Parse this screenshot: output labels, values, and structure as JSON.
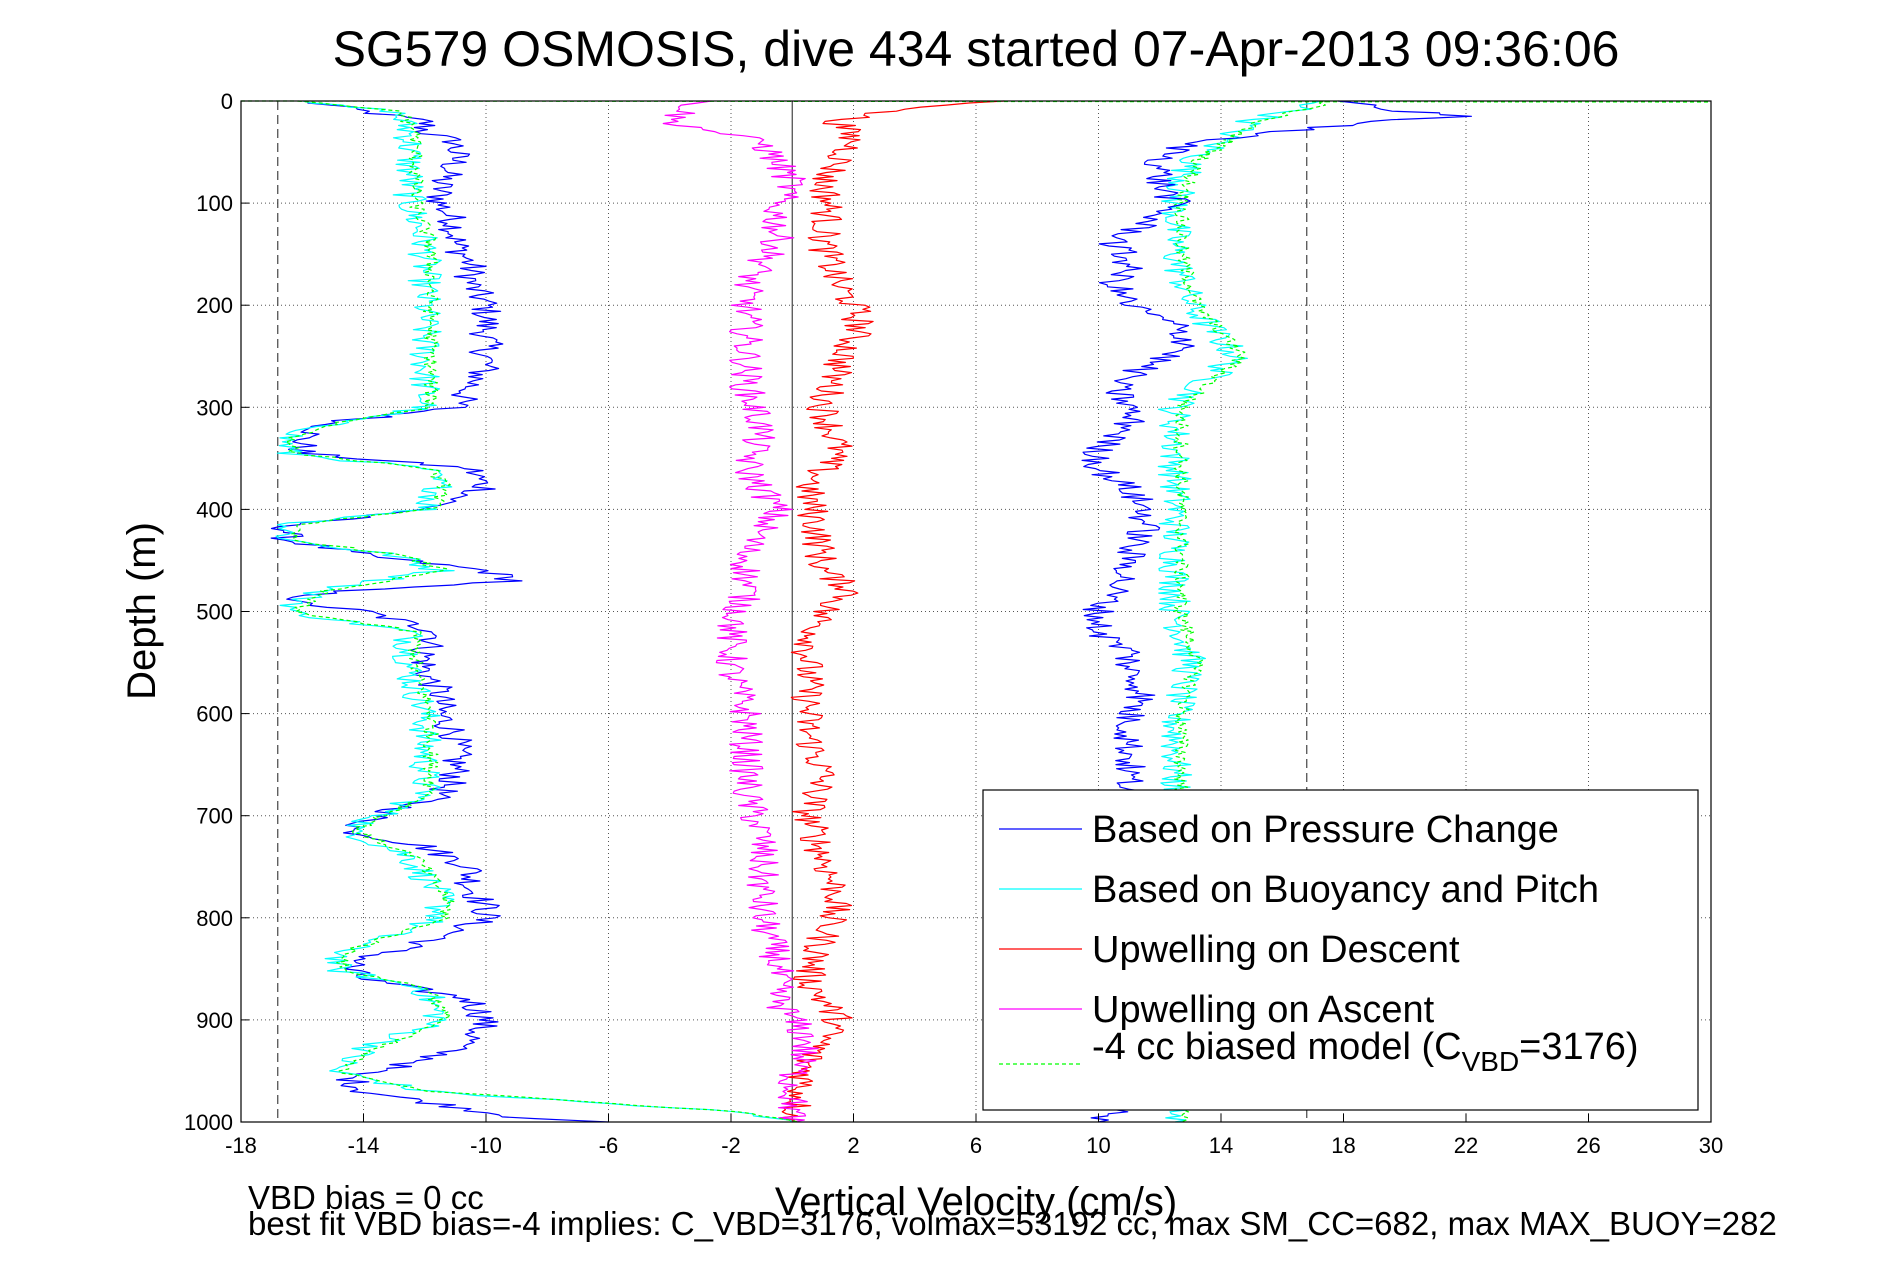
{
  "chart_data": {
    "type": "line",
    "title": "SG579 OSMOSIS, dive 434 started 07-Apr-2013 09:36:06",
    "xlabel": "Vertical Velocity (cm/s)",
    "ylabel": "Depth (m)",
    "xlim": [
      -18,
      30
    ],
    "ylim": [
      0,
      1000
    ],
    "y_reversed": true,
    "grid": true,
    "x_ticks": [
      "-18",
      "-14",
      "-10",
      "-6",
      "-2",
      "2",
      "6",
      "10",
      "14",
      "18",
      "22",
      "26",
      "30"
    ],
    "y_ticks": [
      "0",
      "100",
      "200",
      "300",
      "400",
      "500",
      "600",
      "700",
      "800",
      "900",
      "1000"
    ],
    "reference_lines": [
      {
        "x": -16.8,
        "style": "dashed"
      },
      {
        "x": 16.8,
        "style": "dashed"
      },
      {
        "x": 0,
        "style": "solid"
      }
    ],
    "legend_position": "bottom-right",
    "series": [
      {
        "name": "Based on Pressure Change",
        "color": "#0000ff",
        "style": "solid",
        "groups": [
          {
            "depth": [
              0,
              10,
              20,
              30,
              40,
              60,
              80,
              100,
              120,
              140,
              160,
              180,
              200,
              220,
              240,
              260,
              280,
              300,
              315,
              330,
              345,
              360,
              380,
              400,
              415,
              430,
              445,
              460,
              470,
              480,
              490,
              500,
              520,
              540,
              560,
              580,
              600,
              620,
              640,
              660,
              680,
              700,
              715,
              730,
              750,
              770,
              790,
              800,
              820,
              840,
              850,
              860,
              880,
              900,
              920,
              940,
              955,
              970,
              985,
              995,
              1000
            ],
            "value": [
              -16,
              -14,
              -12,
              -12,
              -11,
              -11,
              -11.5,
              -11.5,
              -11,
              -11,
              -10.5,
              -10.5,
              -10,
              -10,
              -10,
              -10,
              -10.5,
              -11,
              -15,
              -16,
              -16,
              -10.5,
              -10,
              -12,
              -16.5,
              -16.5,
              -14,
              -10,
              -9,
              -15,
              -16.5,
              -14,
              -11.5,
              -12,
              -12,
              -11.5,
              -11.5,
              -11,
              -11,
              -11,
              -11.5,
              -13.5,
              -14.5,
              -12,
              -10.5,
              -10.5,
              -10,
              -10,
              -11.5,
              -14,
              -14.5,
              -14,
              -10.5,
              -10,
              -10.5,
              -12,
              -14.5,
              -14,
              -11,
              -9,
              -6
            ]
          }
        ]
      },
      {
        "name": "Based on Buoyancy and Pitch",
        "color": "#00ffff",
        "style": "solid",
        "groups": [
          {
            "depth": [
              0,
              10,
              30,
              60,
              100,
              140,
              180,
              220,
              260,
              300,
              315,
              330,
              345,
              360,
              380,
              400,
              415,
              430,
              445,
              460,
              480,
              500,
              520,
              560,
              600,
              640,
              680,
              700,
              715,
              740,
              780,
              800,
              830,
              850,
              870,
              900,
              930,
              950,
              970,
              990,
              1000
            ],
            "value": [
              -16.5,
              -13,
              -12.5,
              -12.5,
              -12.5,
              -12,
              -12,
              -12,
              -12,
              -12,
              -15,
              -16.5,
              -16.5,
              -12,
              -11.5,
              -12,
              -16.5,
              -16.5,
              -13,
              -11.5,
              -15.5,
              -16.5,
              -12.5,
              -12.5,
              -12,
              -12,
              -12,
              -13.5,
              -14.5,
              -12.5,
              -11.5,
              -11.5,
              -14.5,
              -15,
              -12,
              -11.5,
              -14,
              -15,
              -12,
              -2,
              0
            ]
          },
          {
            "depth": [
              0,
              20,
              60,
              100,
              150,
              200,
              250,
              300,
              350,
              400,
              450,
              500,
              550,
              600,
              650,
              700,
              750,
              800,
              850,
              900,
              950,
              1000
            ],
            "value": [
              17.5,
              15,
              13,
              12.5,
              12.5,
              13,
              14.5,
              12.5,
              12.5,
              12.5,
              12.5,
              12.5,
              13,
              12.5,
              12.5,
              12.5,
              12.5,
              12.5,
              12.5,
              12.5,
              12.5,
              12.5
            ]
          }
        ]
      },
      {
        "name": "Upwelling on Descent",
        "color": "#ff0000",
        "style": "solid",
        "groups": [
          {
            "depth": [
              0,
              10,
              20,
              40,
              60,
              80,
              100,
              140,
              180,
              200,
              220,
              260,
              300,
              340,
              380,
              420,
              460,
              480,
              500,
              540,
              580,
              620,
              660,
              700,
              740,
              780,
              820,
              860,
              900,
              940,
              970,
              1000
            ],
            "value": [
              7,
              3,
              1.5,
              2,
              1.5,
              1,
              1.2,
              1,
              1.5,
              2,
              2.2,
              1.5,
              1,
              1.5,
              0.5,
              0.8,
              1,
              2,
              1,
              0.5,
              0.5,
              0.5,
              1,
              0.5,
              1,
              1.5,
              1,
              0.5,
              1.5,
              0.5,
              0.3,
              0
            ]
          }
        ]
      },
      {
        "name": "Upwelling on Ascent",
        "color": "#ff00ff",
        "style": "solid",
        "groups": [
          {
            "depth": [
              0,
              20,
              40,
              60,
              80,
              100,
              140,
              160,
              180,
              200,
              240,
              280,
              320,
              360,
              400,
              440,
              480,
              520,
              560,
              600,
              640,
              680,
              720,
              760,
              800,
              840,
              880,
              920,
              960,
              1000
            ],
            "value": [
              -3,
              -4,
              -1,
              -0.5,
              0,
              -0.5,
              -0.5,
              -1,
              -1.5,
              -1.5,
              -1.5,
              -1.5,
              -1,
              -1.5,
              -0.5,
              -1.5,
              -1.5,
              -2,
              -2,
              -1.5,
              -1.5,
              -1.5,
              -1,
              -1,
              -1,
              -0.5,
              -0.5,
              0.5,
              0,
              0
            ]
          }
        ]
      },
      {
        "name": "-4 cc biased model (C_VBD=3176)",
        "color": "#00ff00",
        "style": "dashed",
        "groups": [
          {
            "depth": [
              0,
              10,
              30,
              60,
              100,
              140,
              180,
              220,
              260,
              300,
              315,
              330,
              345,
              360,
              380,
              400,
              415,
              430,
              445,
              460,
              480,
              500,
              520,
              560,
              600,
              640,
              680,
              700,
              715,
              740,
              780,
              800,
              830,
              850,
              870,
              900,
              930,
              950,
              970,
              990,
              1000
            ],
            "value": [
              -16.3,
              -12.8,
              -12.3,
              -12.3,
              -12.3,
              -11.8,
              -11.8,
              -11.8,
              -11.8,
              -11.8,
              -14.8,
              -16.3,
              -16.3,
              -11.8,
              -11.3,
              -11.8,
              -16.3,
              -16.3,
              -12.8,
              -11.3,
              -15.3,
              -16.3,
              -12.3,
              -12.3,
              -11.8,
              -11.8,
              -11.8,
              -13.3,
              -14.3,
              -12.3,
              -11.3,
              -11.3,
              -14.3,
              -14.8,
              -11.8,
              -11.3,
              -13.8,
              -14.8,
              -11.8,
              -1.8,
              0.2
            ]
          },
          {
            "depth": [
              0,
              20,
              60,
              100,
              150,
              200,
              250,
              300,
              350,
              400,
              450,
              500,
              550,
              600,
              650,
              700,
              750,
              800,
              850,
              900,
              950,
              1000
            ],
            "value": [
              17.7,
              15.2,
              13.2,
              12.7,
              12.7,
              13.2,
              14.7,
              12.7,
              12.7,
              12.7,
              12.7,
              12.7,
              13.2,
              12.7,
              12.7,
              12.7,
              12.7,
              12.7,
              12.7,
              12.7,
              12.7,
              12.7
            ]
          },
          {
            "depth": [
              0,
              1
            ],
            "value": [
              -18,
              30
            ]
          }
        ]
      },
      {
        "name": "",
        "color": "#0000ff",
        "style": "solid",
        "groups": [
          {
            "depth": [
              0,
              10,
              15,
              20,
              30,
              40,
              60,
              80,
              100,
              120,
              140,
              160,
              180,
              200,
              220,
              240,
              260,
              280,
              300,
              320,
              340,
              360,
              380,
              400,
              420,
              440,
              460,
              480,
              500,
              520,
              540,
              560,
              580,
              600,
              620,
              640,
              660,
              680,
              700,
              720,
              740,
              760,
              780,
              800,
              820,
              840,
              860,
              880,
              900,
              920,
              940,
              960,
              980,
              1000
            ],
            "value": [
              18,
              20,
              22,
              19,
              16,
              13,
              12,
              12,
              12.5,
              11.5,
              10.5,
              11,
              10.5,
              11,
              12.5,
              13,
              11.5,
              10.5,
              11,
              11,
              10,
              10,
              11,
              11.5,
              11.5,
              11,
              11,
              10.5,
              10,
              10,
              11,
              11,
              11.5,
              11,
              11,
              11,
              11,
              11,
              11,
              11,
              11,
              11,
              11,
              11,
              11,
              11,
              11,
              11,
              11,
              11,
              11,
              11,
              11.5,
              10
            ]
          }
        ]
      }
    ]
  },
  "legend": {
    "entries": [
      {
        "label": "Based on Pressure Change",
        "color": "#0000ff",
        "style": "solid"
      },
      {
        "label": "Based on Buoyancy and Pitch",
        "color": "#00ffff",
        "style": "solid"
      },
      {
        "label": "Upwelling on Descent",
        "color": "#ff0000",
        "style": "solid"
      },
      {
        "label": "Upwelling on Ascent",
        "color": "#ff00ff",
        "style": "solid"
      }
    ],
    "biased_entry": {
      "prefix": "-4 cc biased model (C",
      "subscript": "VBD",
      "suffix": "=3176)",
      "color": "#00ff00",
      "style": "dashed"
    }
  },
  "footnotes": {
    "line1": "VBD bias = 0 cc",
    "line2": "best fit VBD bias=-4 implies: C_VBD=3176, volmax=53192 cc, max SM_CC=682, max MAX_BUOY=282"
  }
}
